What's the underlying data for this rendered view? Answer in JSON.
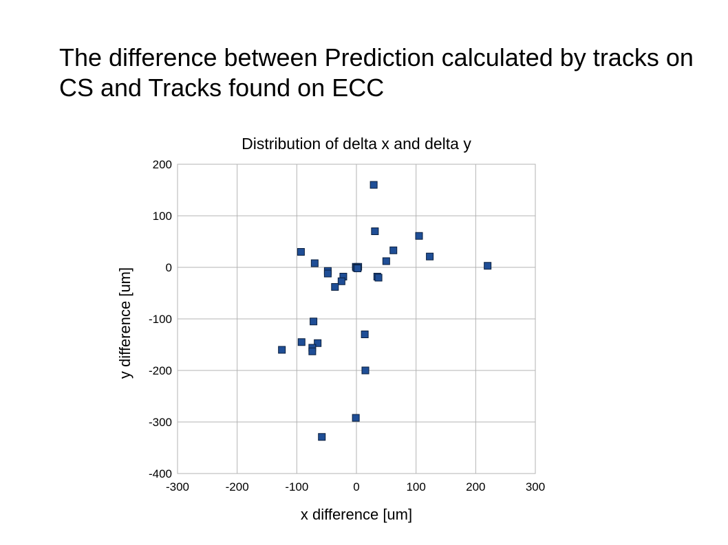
{
  "slide": {
    "title": "The difference between Prediction calculated by tracks on CS and Tracks found on ECC"
  },
  "chart_data": {
    "type": "scatter",
    "title": "Distribution of delta x and delta y",
    "xlabel": "x difference [um]",
    "ylabel": "y difference [um]",
    "xlim": [
      -300,
      300
    ],
    "ylim": [
      -400,
      200
    ],
    "xticks": [
      -300,
      -200,
      -100,
      0,
      100,
      200,
      300
    ],
    "yticks": [
      -400,
      -300,
      -200,
      -100,
      0,
      100,
      200
    ],
    "grid": true,
    "legend": "none",
    "marker_color": "#1f4e96",
    "marker_edge_color": "#0a1e3c",
    "points": [
      {
        "x": 29,
        "y": 160
      },
      {
        "x": 31,
        "y": 70
      },
      {
        "x": 105,
        "y": 61
      },
      {
        "x": 62,
        "y": 33
      },
      {
        "x": 123,
        "y": 21
      },
      {
        "x": 50,
        "y": 12
      },
      {
        "x": 220,
        "y": 3
      },
      {
        "x": -93,
        "y": 30
      },
      {
        "x": -70,
        "y": 8
      },
      {
        "x": -48,
        "y": -7
      },
      {
        "x": -48,
        "y": -12
      },
      {
        "x": -22,
        "y": -18
      },
      {
        "x": -25,
        "y": -27
      },
      {
        "x": -36,
        "y": -38
      },
      {
        "x": -1,
        "y": 1
      },
      {
        "x": 3,
        "y": 1
      },
      {
        "x": 0,
        "y": -1
      },
      {
        "x": 2,
        "y": -2
      },
      {
        "x": 35,
        "y": -18
      },
      {
        "x": 37,
        "y": -20
      },
      {
        "x": -72,
        "y": -105
      },
      {
        "x": 14,
        "y": -130
      },
      {
        "x": -92,
        "y": -145
      },
      {
        "x": -65,
        "y": -147
      },
      {
        "x": -74,
        "y": -156
      },
      {
        "x": -74,
        "y": -163
      },
      {
        "x": -125,
        "y": -160
      },
      {
        "x": 15,
        "y": -200
      },
      {
        "x": -1,
        "y": -292
      },
      {
        "x": -58,
        "y": -329
      }
    ]
  }
}
